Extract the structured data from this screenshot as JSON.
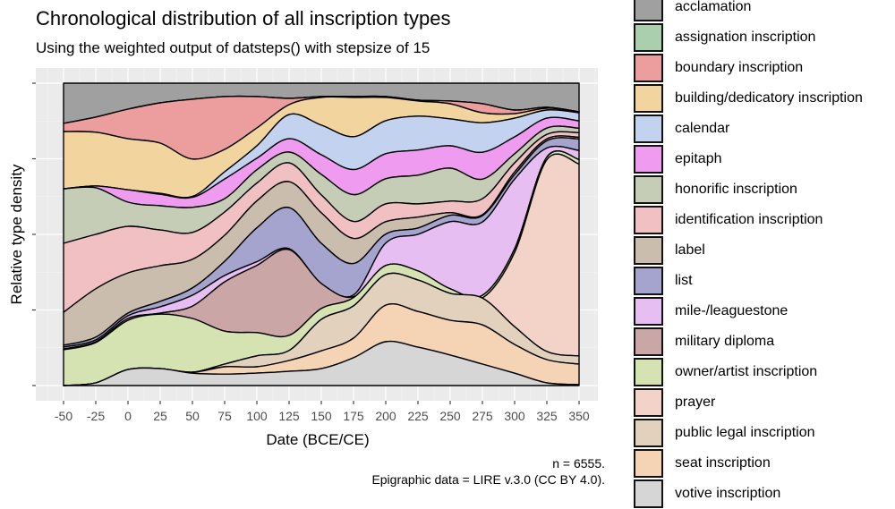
{
  "chart_data": {
    "type": "area",
    "stacking": "fill",
    "title": "Chronological distribution of all inscription types",
    "subtitle": "Using the weighted output of datsteps() with stepsize of 15",
    "xlabel": "Date (BCE/CE)",
    "ylabel": "Relative type density",
    "xlim": [
      -50,
      350
    ],
    "ylim": [
      0,
      100
    ],
    "x_ticks": [
      -50,
      -25,
      0,
      25,
      50,
      75,
      100,
      125,
      150,
      175,
      200,
      225,
      250,
      275,
      300,
      325,
      350
    ],
    "y_tick_labels_shown": false,
    "grid": true,
    "legend_position": "right",
    "x": [
      -50,
      -25,
      0,
      25,
      50,
      75,
      100,
      125,
      150,
      175,
      200,
      225,
      250,
      275,
      300,
      325,
      350
    ],
    "series": [
      {
        "name": "acclamation",
        "color": "#a0a0a0",
        "values": [
          13.3,
          11.2,
          8.6,
          6.5,
          5.3,
          4.4,
          4.4,
          5.0,
          4.4,
          4.4,
          4.4,
          5.6,
          5.9,
          6.8,
          8.9,
          8.0,
          9.5
        ]
      },
      {
        "name": "assignation inscription",
        "color": "#aacfae",
        "values": [
          0,
          0,
          0,
          0,
          0,
          0,
          0,
          0,
          0,
          0,
          0,
          0,
          0,
          0,
          0,
          0,
          0
        ]
      },
      {
        "name": "boundary inscription",
        "color": "#ec9e9e",
        "values": [
          2.7,
          5.0,
          9.8,
          13.3,
          19.8,
          17.5,
          10.4,
          2.1,
          0.3,
          0.3,
          0.3,
          0.3,
          0.9,
          3.0,
          1.2,
          0.3,
          0
        ]
      },
      {
        "name": "building/dedicatory inscription",
        "color": "#f2d49f",
        "values": [
          18.9,
          17.8,
          16.9,
          16.6,
          12.4,
          7.4,
          5.9,
          3.3,
          9.2,
          13.0,
          7.7,
          5.0,
          5.0,
          3.3,
          1.5,
          0.6,
          0.3
        ]
      },
      {
        "name": "calendar",
        "color": "#c2d2ef",
        "values": [
          0,
          0,
          0,
          0.3,
          0.3,
          2.4,
          4.1,
          8.0,
          9.8,
          10.9,
          10.9,
          11.2,
          8.9,
          9.8,
          6.2,
          2.7,
          2.7
        ]
      },
      {
        "name": "epitaph",
        "color": "#ef9cf0",
        "values": [
          0,
          0.6,
          4.1,
          3.8,
          3.3,
          6.5,
          3.8,
          4.4,
          6.5,
          8.3,
          8.3,
          8.3,
          7.4,
          8.9,
          5.6,
          3.3,
          2.4
        ]
      },
      {
        "name": "honorific inscription",
        "color": "#c6cdb6",
        "values": [
          18.0,
          15.4,
          8.0,
          8.0,
          8.3,
          4.4,
          4.4,
          3.6,
          6.8,
          8.9,
          8.3,
          9.5,
          10.9,
          6.5,
          3.0,
          2.1,
          1.5
        ]
      },
      {
        "name": "identification inscription",
        "color": "#f1c0c2",
        "values": [
          22.8,
          18.0,
          15.4,
          11.8,
          8.9,
          7.7,
          5.9,
          6.2,
          5.9,
          5.6,
          5.9,
          4.4,
          3.8,
          5.3,
          3.0,
          1.5,
          1.5
        ]
      },
      {
        "name": "label",
        "color": "#cbbdae",
        "values": [
          10.9,
          16.0,
          13.3,
          11.8,
          9.5,
          8.6,
          8.9,
          8.6,
          10.1,
          8.3,
          4.1,
          3.6,
          0.9,
          0.3,
          0.9,
          0.6,
          0.6
        ]
      },
      {
        "name": "list",
        "color": "#a4a4cf",
        "values": [
          0.6,
          0.9,
          0.9,
          1.8,
          2.4,
          4.7,
          11.2,
          13.6,
          13.3,
          10.4,
          3.0,
          2.1,
          2.1,
          2.1,
          1.5,
          2.4,
          3.8
        ]
      },
      {
        "name": "mile-/leaguestone",
        "color": "#e6bef2",
        "values": [
          0.6,
          0.6,
          0.9,
          2.1,
          3.6,
          2.1,
          1.2,
          0.3,
          0,
          0.6,
          7.4,
          12.1,
          22.2,
          24.3,
          23.1,
          3.0,
          3.0
        ]
      },
      {
        "name": "military diploma",
        "color": "#caa6a6",
        "values": [
          0.3,
          0.3,
          0.6,
          0.3,
          4.1,
          16.3,
          22.2,
          28.4,
          8.3,
          0.3,
          0,
          0,
          0,
          0,
          0,
          0,
          0
        ]
      },
      {
        "name": "owner/artist inscription",
        "color": "#d4e3b1",
        "values": [
          11.8,
          13.3,
          16.3,
          18.0,
          17.8,
          10.9,
          7.7,
          5.0,
          3.6,
          2.7,
          3.0,
          3.0,
          1.5,
          0.9,
          1.2,
          0.9,
          1.5
        ]
      },
      {
        "name": "prayer",
        "color": "#f3d3c7",
        "values": [
          0,
          0,
          0,
          0,
          0,
          0,
          0,
          0,
          0,
          0,
          0,
          0,
          0,
          0,
          24.6,
          63.6,
          63.6
        ]
      },
      {
        "name": "public legal inscription",
        "color": "#e2d1bd",
        "values": [
          0,
          0,
          0,
          0,
          0,
          0.9,
          3.6,
          3.3,
          10.4,
          10.7,
          10.1,
          10.4,
          8.9,
          8.9,
          5.9,
          2.7,
          2.7
        ]
      },
      {
        "name": "seat inscription",
        "color": "#f5d3b5",
        "values": [
          0,
          0,
          0,
          0,
          0.3,
          2.4,
          2.1,
          3.6,
          5.9,
          6.5,
          12.1,
          11.8,
          11.5,
          13.0,
          9.5,
          7.7,
          6.8
        ]
      },
      {
        "name": "votive inscription",
        "color": "#d6d6d6",
        "values": [
          0,
          0.9,
          5.3,
          5.6,
          4.1,
          3.8,
          4.1,
          4.7,
          5.6,
          9.2,
          14.5,
          12.7,
          10.1,
          7.1,
          4.1,
          0.9,
          0.3
        ]
      }
    ],
    "caption": [
      "n = 6555.",
      "Epigraphic data = LIRE v.3.0 (CC BY 4.0)."
    ]
  }
}
